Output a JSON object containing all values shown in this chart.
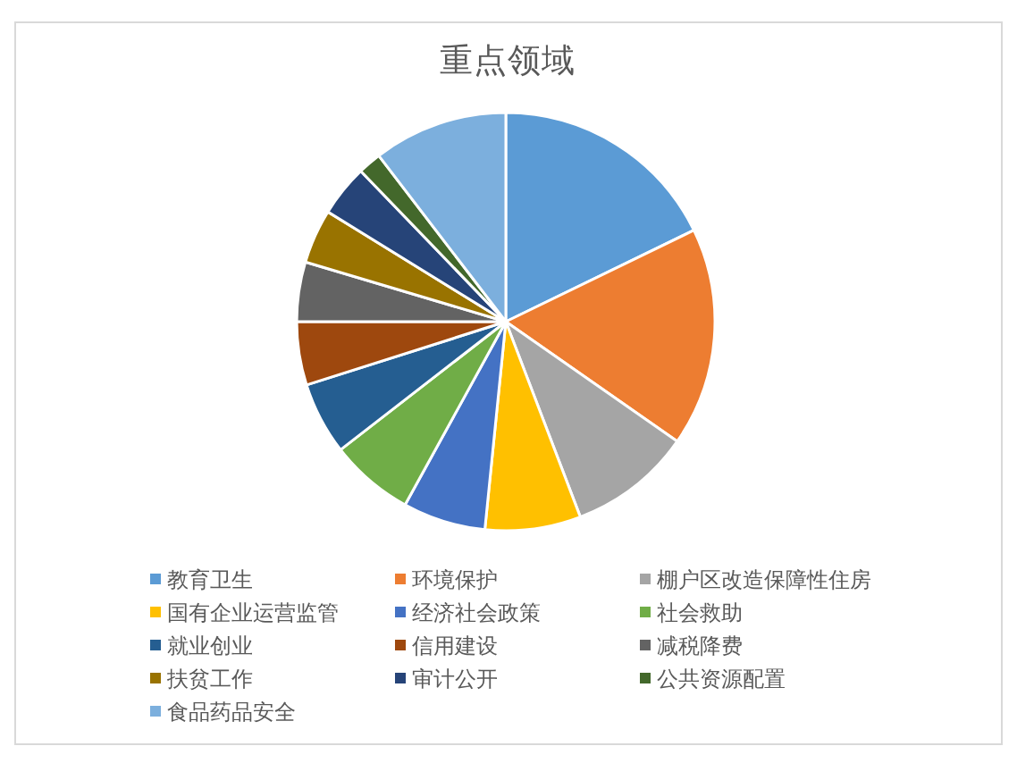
{
  "chart_data": {
    "type": "pie",
    "title": "重点领域",
    "categories": [
      "教育卫生",
      "环境保护",
      "棚户区改造保障性住房",
      "国有企业运营监管",
      "经济社会政策",
      "社会救助",
      "就业创业",
      "信用建设",
      "减税降费",
      "扶贫工作",
      "审计公开",
      "公共资源配置",
      "食品药品安全"
    ],
    "values": [
      17.8,
      16.9,
      9.5,
      7.4,
      6.4,
      6.5,
      5.6,
      4.9,
      4.6,
      4.2,
      4.0,
      1.8,
      10.4
    ],
    "colors": [
      "#5b9bd5",
      "#ed7d31",
      "#a5a5a5",
      "#ffc000",
      "#4472c4",
      "#70ad47",
      "#255e91",
      "#9e480e",
      "#636363",
      "#997300",
      "#264478",
      "#43682b",
      "#7cafdd"
    ],
    "legend": "bottom"
  }
}
